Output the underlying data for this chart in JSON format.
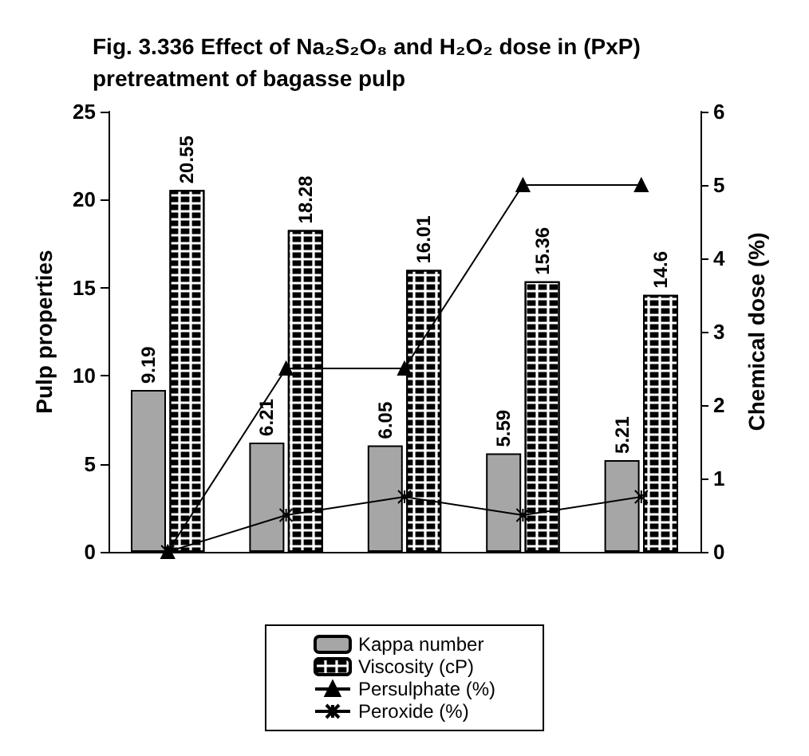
{
  "chart_data": {
    "type": "bar",
    "title": "Fig. 3.336 Effect of Na₂S₂O₈ and H₂O₂ dose in (PxP) pretreatment of bagasse pulp",
    "ylabel": "Pulp properties",
    "y2label": "Chemical dose (%)",
    "categories": [
      null,
      null,
      null,
      null,
      null
    ],
    "series": [
      {
        "name": "Kappa number",
        "color": "#a6a6a6",
        "values": [
          9.19,
          6.21,
          6.05,
          5.59,
          5.21
        ],
        "value_labels": [
          "9.19",
          "6.21",
          "6.05",
          "5.59",
          "5.21"
        ]
      },
      {
        "name": "Viscosity (cP)",
        "color": "#ffffff",
        "values": [
          20.55,
          18.28,
          16.01,
          15.36,
          14.6
        ],
        "value_labels": [
          "20.55",
          "18.28",
          "16.01",
          "15.36",
          "14.6"
        ]
      },
      {
        "name": "Persulphate (%)",
        "type": "line",
        "axis": "y2",
        "color": "#000000",
        "marker": "triangle",
        "values": [
          0,
          2.5,
          2.5,
          5,
          5
        ]
      },
      {
        "name": "Peroxide (%)",
        "type": "line",
        "axis": "y2",
        "color": "#000000",
        "marker": "cross",
        "values": [
          0,
          0.5,
          0.75,
          0.5,
          0.75
        ]
      }
    ],
    "ylim": [
      0,
      25
    ],
    "yticks": [
      0,
      5,
      10,
      15,
      20,
      25
    ],
    "y2lim": [
      0,
      6
    ],
    "y2ticks": [
      0,
      1,
      2,
      3,
      4,
      5,
      6
    ],
    "grid": false,
    "legend": "bottom"
  }
}
